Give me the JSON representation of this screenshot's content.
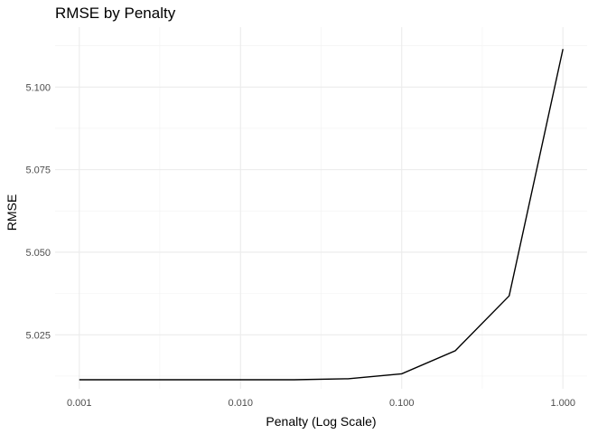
{
  "chart_data": {
    "type": "line",
    "title": "RMSE by Penalty",
    "xlabel": "Penalty (Log Scale)",
    "ylabel": "RMSE",
    "x_scale": "log10",
    "xlim": [
      0.001,
      1.0
    ],
    "ylim": [
      5.0114,
      5.1154
    ],
    "x_ticks": [
      0.001,
      0.01,
      0.1,
      1.0
    ],
    "x_tick_labels": [
      "0.001",
      "0.010",
      "0.100",
      "1.000"
    ],
    "x_minor_ticks": [
      0.00316,
      0.0316,
      0.316
    ],
    "y_ticks": [
      5.025,
      5.05,
      5.075,
      5.1
    ],
    "y_tick_labels": [
      "5.025",
      "5.050",
      "5.075",
      "5.100"
    ],
    "y_minor_ticks": [
      5.0125,
      5.0375,
      5.0625,
      5.0875,
      5.1125
    ],
    "grid": true,
    "x": [
      0.001,
      0.00215,
      0.00464,
      0.01,
      0.0215,
      0.0464,
      0.1,
      0.215,
      0.464,
      1.0
    ],
    "y": [
      5.0114,
      5.0114,
      5.0114,
      5.0114,
      5.0114,
      5.0117,
      5.0132,
      5.0202,
      5.0368,
      5.1115
    ],
    "line_color": "#000000"
  }
}
